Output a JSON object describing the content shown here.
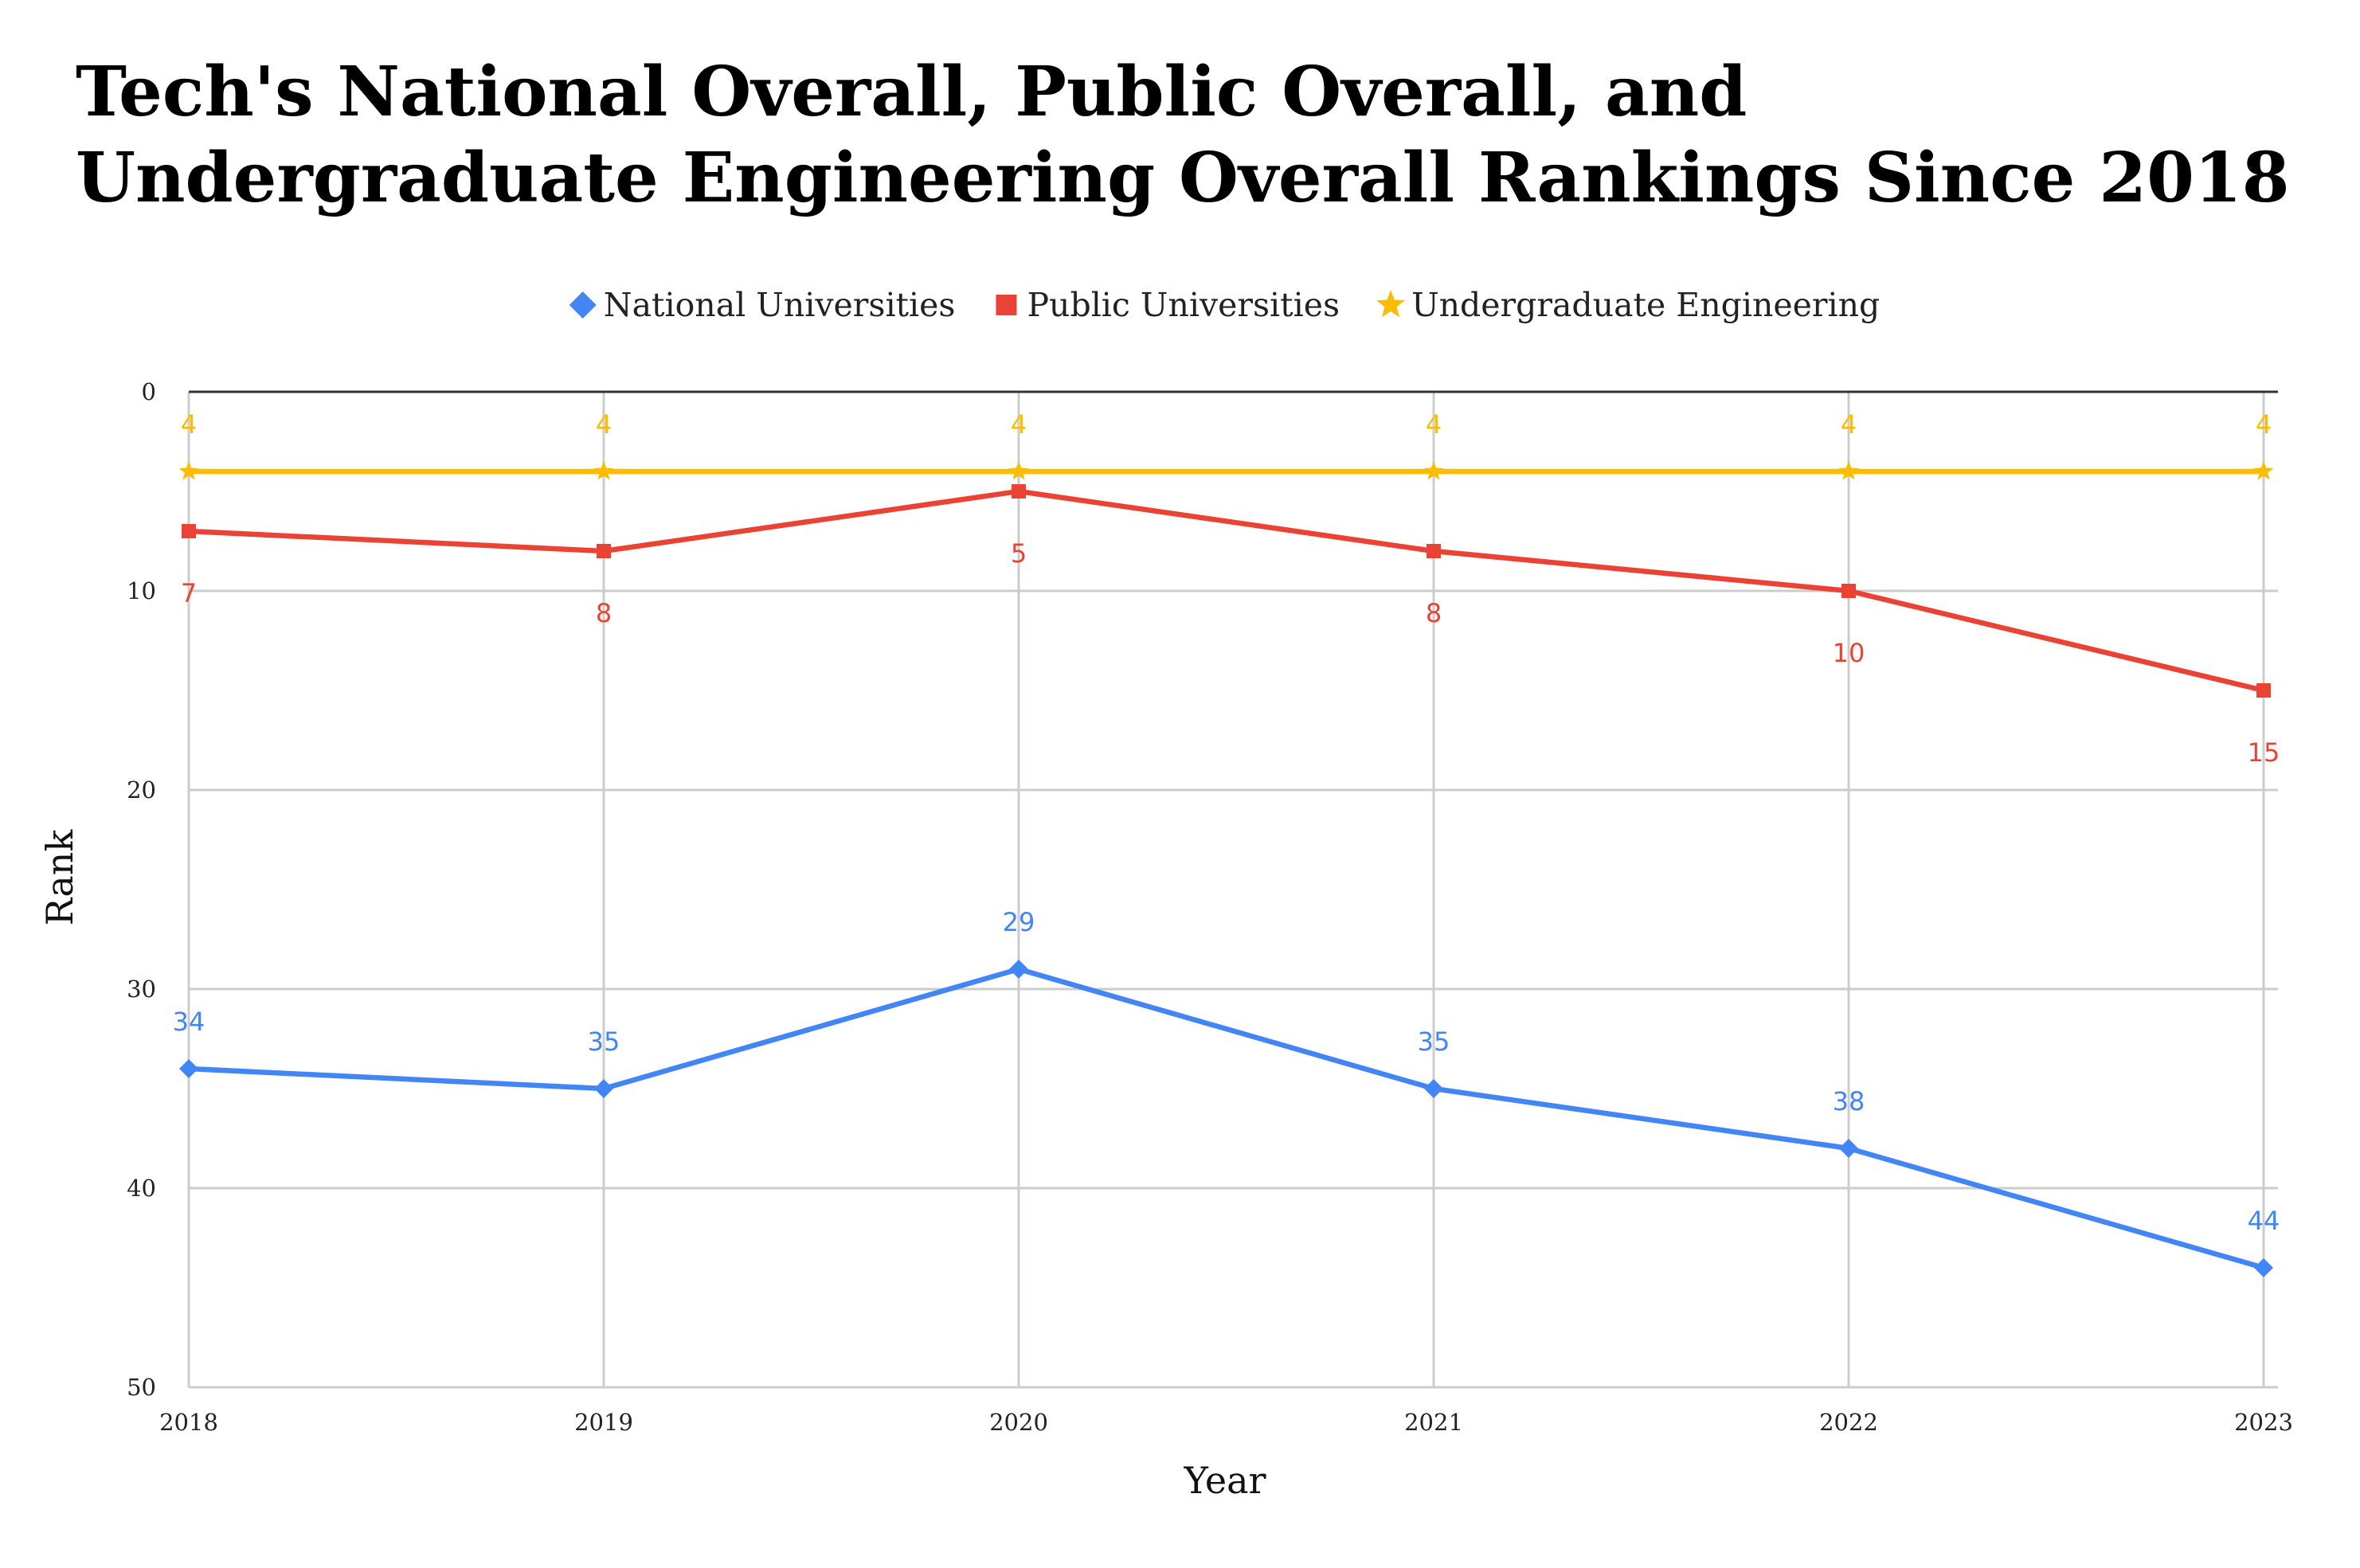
{
  "chart_data": {
    "type": "line",
    "title": "Tech's National Overall, Public Overall, and Undergraduate Engineering Overall Rankings Since 2018",
    "xlabel": "Year",
    "ylabel": "Rank",
    "categories": [
      "2018",
      "2019",
      "2020",
      "2021",
      "2022",
      "2023"
    ],
    "ylim": [
      0,
      50
    ],
    "y_inverted": true,
    "y_ticks": [
      0,
      10,
      20,
      30,
      40,
      50
    ],
    "grid": true,
    "legend_position": "top",
    "series": [
      {
        "name": "National Universities",
        "values": [
          34,
          35,
          29,
          35,
          38,
          44
        ],
        "color": "#4285f4",
        "marker": "diamond",
        "label_position": "above"
      },
      {
        "name": "Public Universities",
        "values": [
          7,
          8,
          5,
          8,
          10,
          15
        ],
        "color": "#ea4335",
        "marker": "square",
        "label_position": "below"
      },
      {
        "name": "Undergraduate Engineering",
        "values": [
          4,
          4,
          4,
          4,
          4,
          4
        ],
        "color": "#fbbc04",
        "marker": "star",
        "label_position": "above"
      }
    ]
  }
}
